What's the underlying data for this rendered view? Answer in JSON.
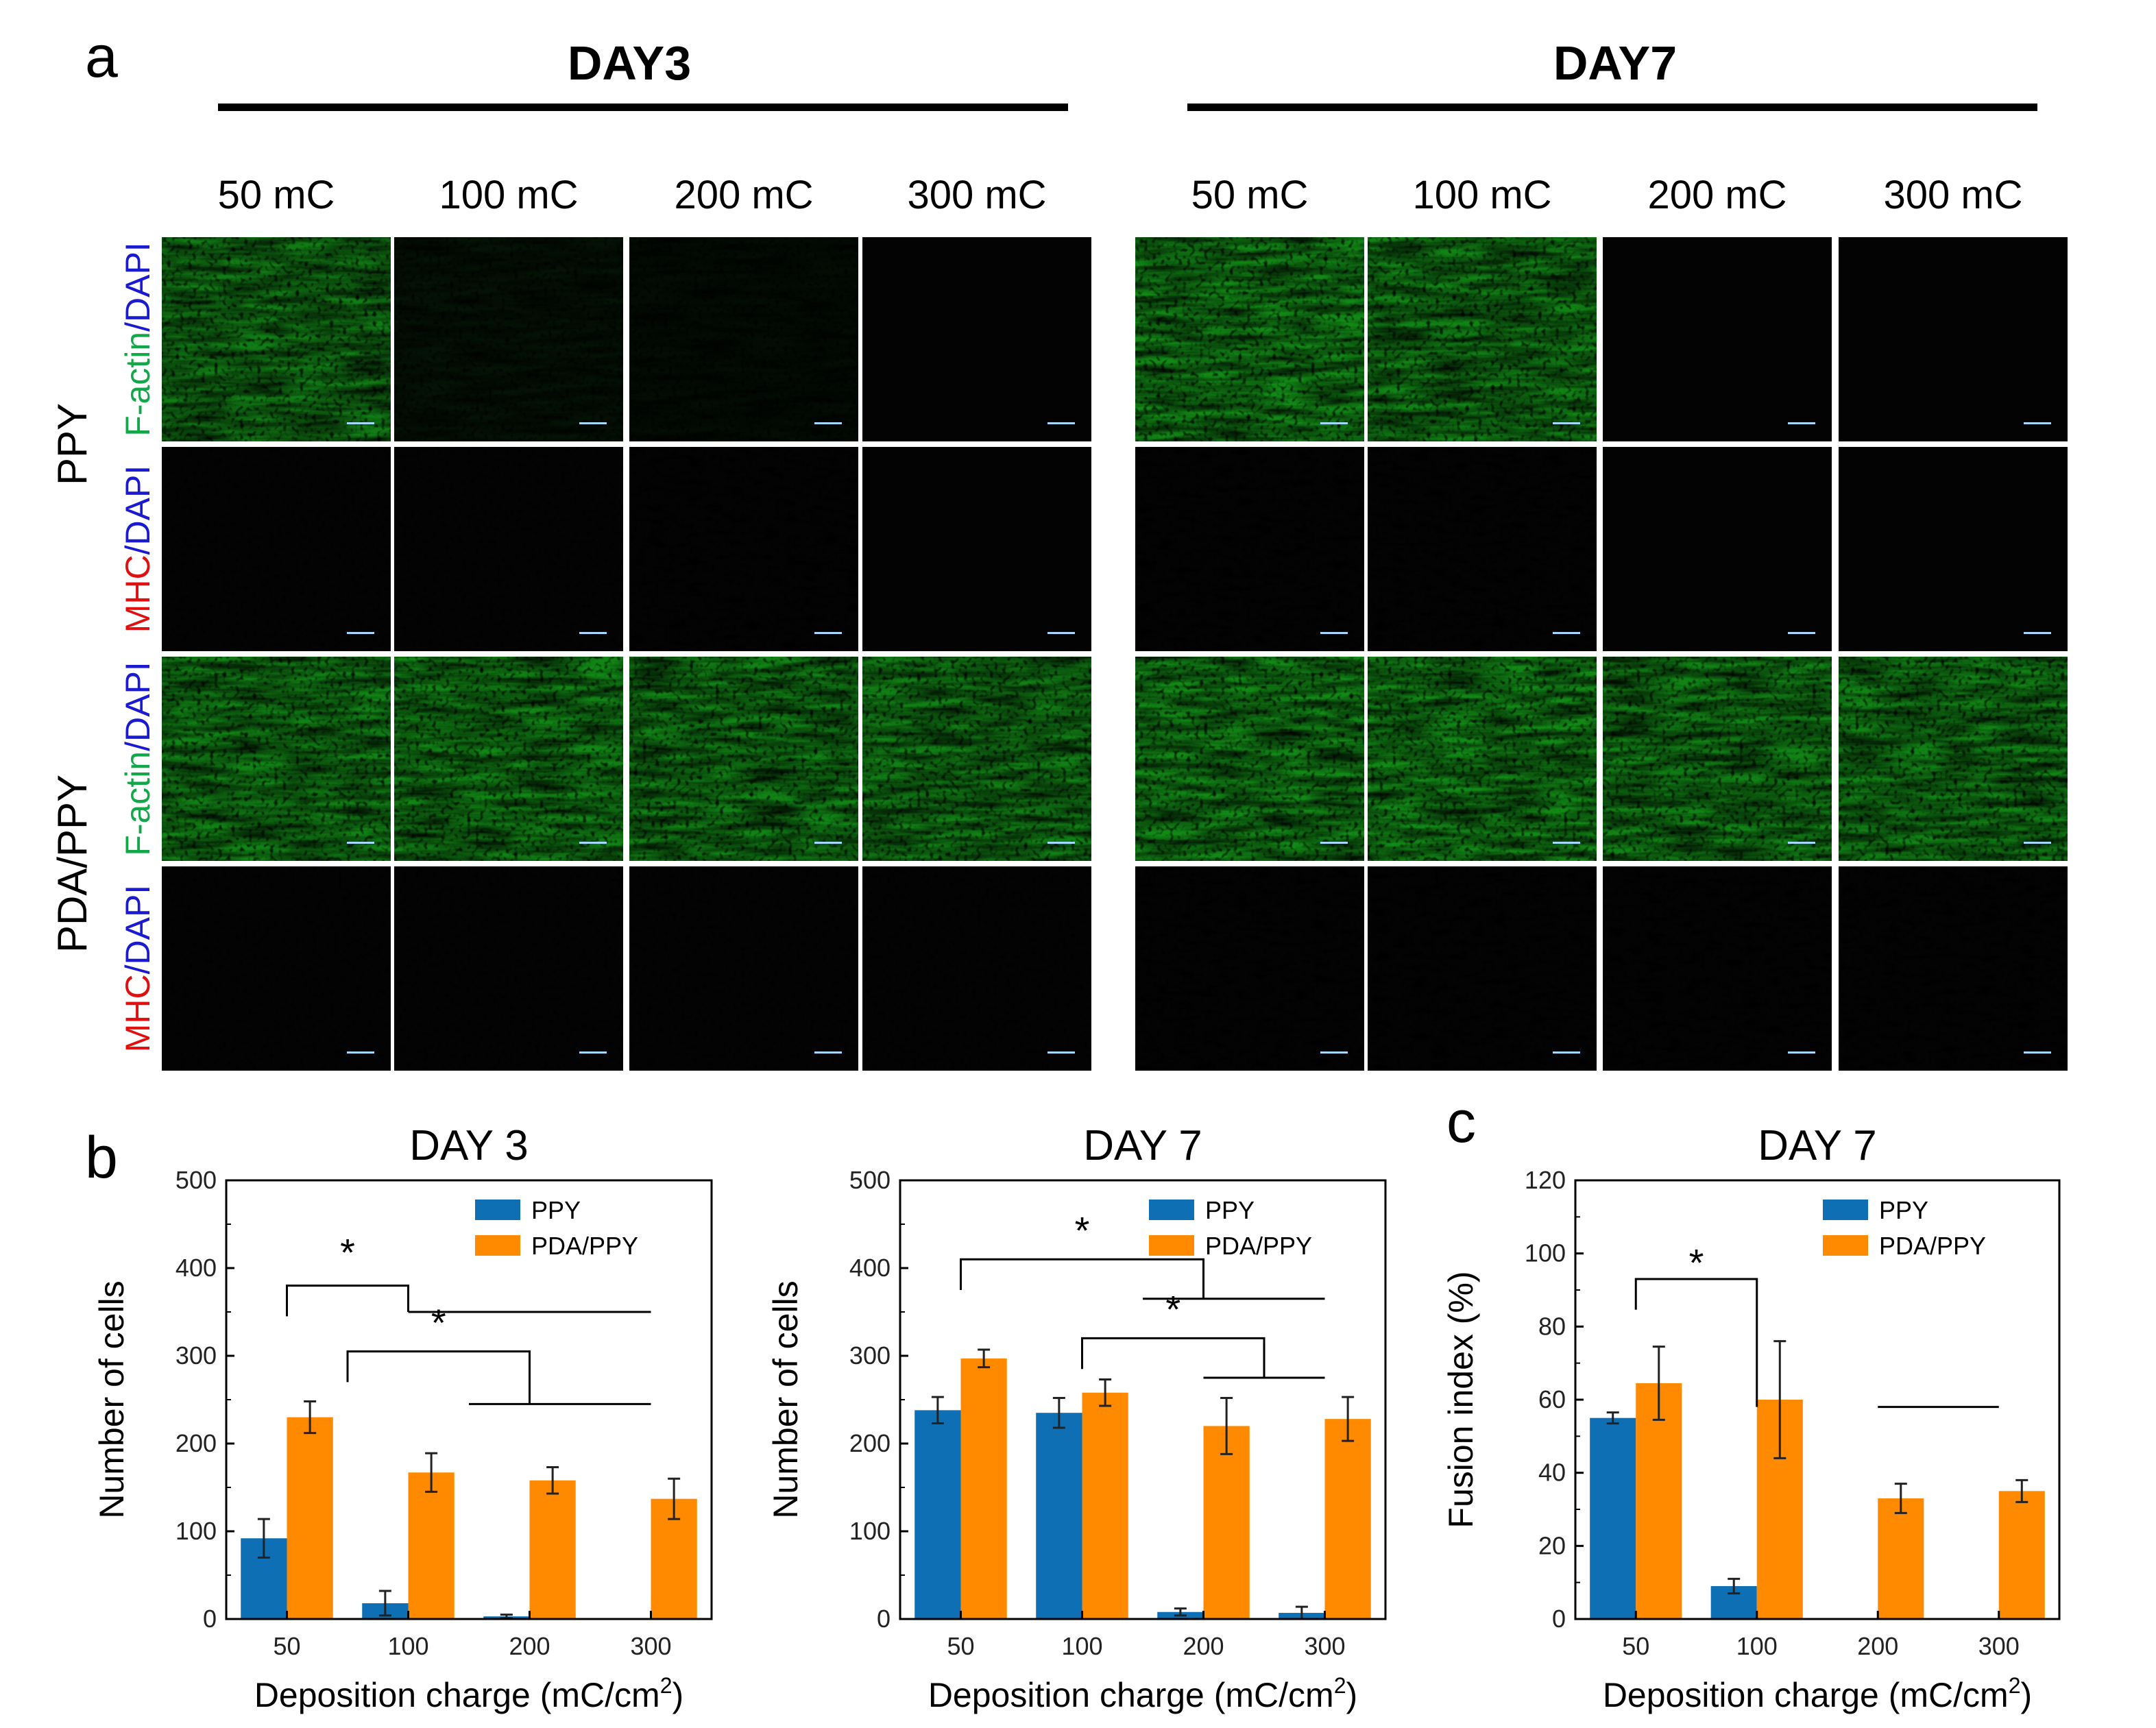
{
  "panel_a": {
    "letter": "a",
    "day_headers": [
      "DAY3",
      "DAY7"
    ],
    "columns": [
      "50 mC",
      "100 mC",
      "200 mC",
      "300 mC",
      "50 mC",
      "100 mC",
      "200 mC",
      "300 mC"
    ],
    "groups": [
      {
        "label": "PPY",
        "rows": [
          {
            "parts": [
              {
                "text": "F-actin",
                "color": "#12a84a"
              },
              {
                "text": "/",
                "color": "#1a1ad0"
              },
              {
                "text": "DAPI",
                "color": "#1a1ad0"
              }
            ]
          },
          {
            "parts": [
              {
                "text": "MHC",
                "color": "#e01010"
              },
              {
                "text": "/",
                "color": "#1a1ad0"
              },
              {
                "text": "DAPI",
                "color": "#1a1ad0"
              }
            ]
          }
        ]
      },
      {
        "label": "PDA/PPY",
        "rows": [
          {
            "parts": [
              {
                "text": "F-actin",
                "color": "#12a84a"
              },
              {
                "text": "/",
                "color": "#1a1ad0"
              },
              {
                "text": "DAPI",
                "color": "#1a1ad0"
              }
            ]
          },
          {
            "parts": [
              {
                "text": "MHC",
                "color": "#e01010"
              },
              {
                "text": "/",
                "color": "#1a1ad0"
              },
              {
                "text": "DAPI",
                "color": "#1a1ad0"
              }
            ]
          }
        ]
      }
    ],
    "image_levels": {
      "green": [
        [
          0.85,
          0.12,
          0.08,
          0.0,
          0.95,
          0.9,
          0.0,
          0.0
        ],
        [
          0.0,
          0.0,
          0.0,
          0.0,
          0.0,
          0.0,
          0.0,
          0.0
        ],
        [
          0.9,
          0.92,
          0.9,
          0.88,
          0.95,
          0.95,
          0.9,
          0.9
        ],
        [
          0.0,
          0.0,
          0.0,
          0.0,
          0.0,
          0.0,
          0.0,
          0.0
        ]
      ],
      "red": [
        [
          0.0,
          0.0,
          0.0,
          0.0,
          0.0,
          0.0,
          0.0,
          0.0
        ],
        [
          0.0,
          0.0,
          0.02,
          0.0,
          0.35,
          0.06,
          0.0,
          0.0
        ],
        [
          0.0,
          0.0,
          0.0,
          0.0,
          0.0,
          0.0,
          0.0,
          0.0
        ],
        [
          0.0,
          0.0,
          0.0,
          0.0,
          0.75,
          0.6,
          0.3,
          0.35
        ]
      ],
      "blue": [
        [
          0.15,
          0.02,
          0.02,
          0.0,
          0.2,
          0.2,
          0.0,
          0.0
        ],
        [
          0.35,
          0.05,
          0.05,
          0.0,
          0.35,
          0.4,
          0.0,
          0.0
        ],
        [
          0.25,
          0.25,
          0.3,
          0.25,
          0.2,
          0.2,
          0.2,
          0.2
        ],
        [
          0.6,
          0.6,
          0.6,
          0.6,
          0.55,
          0.55,
          0.55,
          0.5
        ]
      ]
    }
  },
  "panel_b": {
    "letter": "b"
  },
  "panel_c": {
    "letter": "c"
  },
  "colors": {
    "PPY": "#0e6fb5",
    "PDA/PPY": "#ff8a00"
  },
  "chart_data": [
    {
      "type": "bar",
      "title": "DAY 3",
      "xlabel": "Deposition charge (mC/cm",
      "xlabel_sup": "2",
      "xlabel_end": ")",
      "ylabel": "Number of cells",
      "categories": [
        "50",
        "100",
        "200",
        "300"
      ],
      "ylim": [
        0,
        500
      ],
      "yticks": [
        0,
        100,
        200,
        300,
        400,
        500
      ],
      "legend_position": "top-right",
      "series": [
        {
          "name": "PPY",
          "values": [
            92,
            18,
            3,
            0
          ],
          "errors": [
            22,
            14,
            2,
            0
          ]
        },
        {
          "name": "PDA/PPY",
          "values": [
            230,
            167,
            158,
            137
          ],
          "errors": [
            18,
            22,
            15,
            23
          ]
        }
      ],
      "significance": [
        "*",
        "*"
      ]
    },
    {
      "type": "bar",
      "title": "DAY 7",
      "xlabel": "Deposition charge (mC/cm",
      "xlabel_sup": "2",
      "xlabel_end": ")",
      "ylabel": "Number of cells",
      "categories": [
        "50",
        "100",
        "200",
        "300"
      ],
      "ylim": [
        0,
        500
      ],
      "yticks": [
        0,
        100,
        200,
        300,
        400,
        500
      ],
      "legend_position": "top-right",
      "series": [
        {
          "name": "PPY",
          "values": [
            238,
            235,
            8,
            7
          ],
          "errors": [
            15,
            17,
            4,
            7
          ]
        },
        {
          "name": "PDA/PPY",
          "values": [
            297,
            258,
            220,
            228
          ],
          "errors": [
            10,
            15,
            32,
            25
          ]
        }
      ],
      "significance": [
        "*",
        "*"
      ]
    },
    {
      "type": "bar",
      "title": "DAY 7",
      "xlabel": "Deposition charge (mC/cm",
      "xlabel_sup": "2",
      "xlabel_end": ")",
      "ylabel": "Fusion index (%)",
      "categories": [
        "50",
        "100",
        "200",
        "300"
      ],
      "ylim": [
        0,
        120
      ],
      "yticks": [
        0,
        20,
        40,
        60,
        80,
        100,
        120
      ],
      "legend_position": "top-right",
      "series": [
        {
          "name": "PPY",
          "values": [
            55,
            9,
            0,
            0
          ],
          "errors": [
            1.5,
            2,
            0,
            0
          ]
        },
        {
          "name": "PDA/PPY",
          "values": [
            64.5,
            60,
            33,
            35
          ],
          "errors": [
            10,
            16,
            4,
            3
          ]
        }
      ],
      "significance": [
        "*"
      ]
    }
  ]
}
